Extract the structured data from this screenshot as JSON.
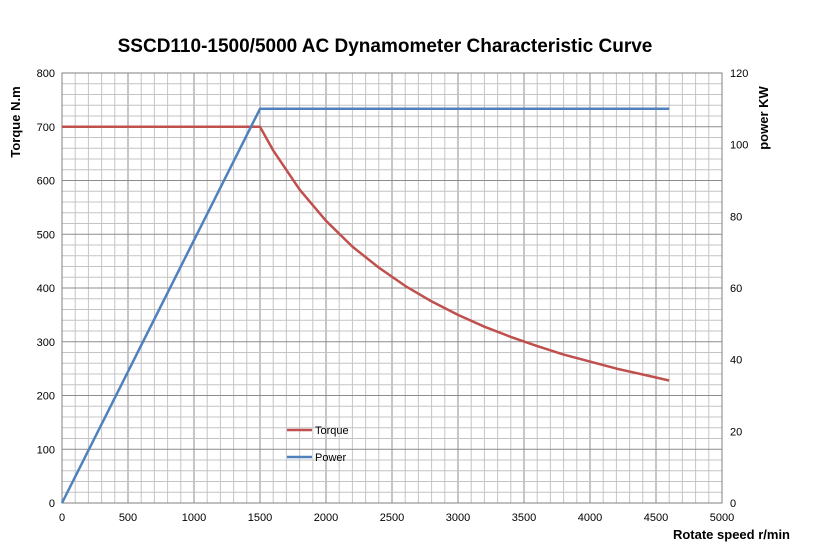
{
  "chart_data": {
    "type": "line",
    "title": "SSCD110-1500/5000 AC Dynamometer Characteristic Curve",
    "xlabel": "Rotate speed r/min",
    "ylabel": "Torque N.m",
    "y2label": "power KW",
    "xlim": [
      0,
      5000
    ],
    "ylim": [
      0,
      800
    ],
    "y2lim": [
      0,
      120
    ],
    "x_ticks": [
      0,
      500,
      1000,
      1500,
      2000,
      2500,
      3000,
      3500,
      4000,
      4500,
      5000
    ],
    "y_ticks": [
      0,
      100,
      200,
      300,
      400,
      500,
      600,
      700,
      800
    ],
    "y2_ticks": [
      0,
      20,
      40,
      60,
      80,
      100,
      120
    ],
    "x_minor_step": 100,
    "y_minor_step": 20,
    "grid": true,
    "legend_position": "lower-left",
    "series": [
      {
        "name": "Torque",
        "axis": "left",
        "color": "#c0504d",
        "x": [
          0,
          1500,
          1600,
          1800,
          2000,
          2200,
          2400,
          2600,
          2800,
          3000,
          3200,
          3400,
          3600,
          3800,
          4000,
          4200,
          4400,
          4600
        ],
        "values": [
          700,
          700,
          656,
          583,
          525,
          477,
          438,
          404,
          375,
          350,
          328,
          309,
          292,
          276,
          263,
          250,
          239,
          228
        ]
      },
      {
        "name": "Power",
        "axis": "right",
        "color": "#4f81bd",
        "x": [
          0,
          1500,
          4600
        ],
        "values": [
          0,
          110,
          110
        ]
      }
    ]
  }
}
